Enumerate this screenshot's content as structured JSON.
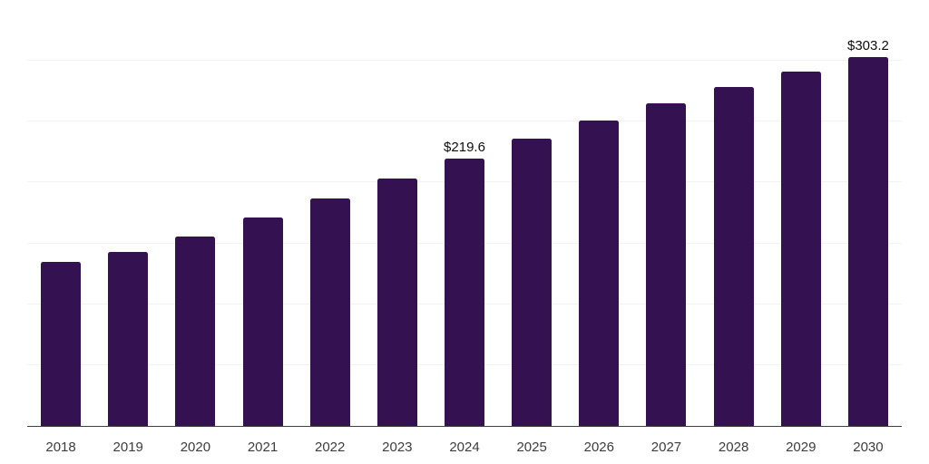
{
  "page": {
    "background_color": "#ffffff"
  },
  "chart_data": {
    "type": "bar",
    "title": "",
    "xlabel": "",
    "ylabel": "",
    "categories": [
      "2018",
      "2019",
      "2020",
      "2021",
      "2022",
      "2023",
      "2024",
      "2025",
      "2026",
      "2027",
      "2028",
      "2029",
      "2030"
    ],
    "values": [
      135.0,
      143.2,
      155.5,
      171.1,
      187.1,
      203.5,
      219.6,
      236.3,
      250.8,
      265.4,
      278.5,
      291.4,
      303.2
    ],
    "ylim": [
      0,
      350
    ],
    "y_gridline_values": [
      50,
      100,
      150,
      200,
      250,
      300,
      350
    ],
    "grid": true,
    "legend_position": "none",
    "y_axis_tick_labels_visible": false,
    "data_labels": [
      {
        "category": "2024",
        "text": "$219.6"
      },
      {
        "category": "2030",
        "text": "$303.2"
      }
    ],
    "bar_color": "#341150",
    "gridline_color": "#f2f2f2",
    "axis_line_color": "#414141",
    "tick_label_color": "#3d3d3d",
    "data_label_color": "#0d0d0d"
  }
}
